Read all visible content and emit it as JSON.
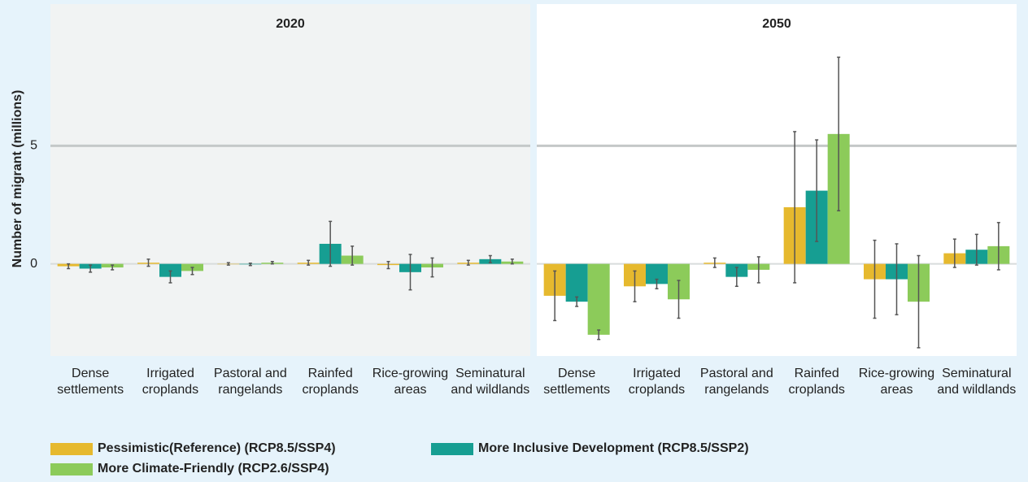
{
  "chart_data": {
    "type": "bar",
    "ylabel": "Number of migrant (millions)",
    "categories": [
      "Dense settlements",
      "Irrigated croplands",
      "Pastoral and rangelands",
      "Rainfed croplands",
      "Rice-growing areas",
      "Seminatural and wildlands"
    ],
    "ylim": [
      -3.9,
      11
    ],
    "yticks": [
      0,
      5
    ],
    "grid": true,
    "series": [
      {
        "name": "Pessimistic(Reference) (RCP8.5/SSP4)",
        "color": "#e6b92e"
      },
      {
        "name": "More Inclusive Development (RCP8.5/SSP2)",
        "color": "#169e92"
      },
      {
        "name": "More Climate-Friendly (RCP2.6/SSP4)",
        "color": "#8ccb5a"
      }
    ],
    "panels": [
      {
        "title": "2020",
        "values": [
          [
            -0.1,
            0.05,
            0,
            0.05,
            -0.05,
            0.05
          ],
          [
            -0.2,
            -0.55,
            -0.02,
            0.85,
            -0.35,
            0.2
          ],
          [
            -0.15,
            -0.3,
            0.05,
            0.35,
            -0.15,
            0.1
          ]
        ],
        "errors": [
          [
            0.1,
            0.15,
            0.05,
            0.1,
            0.15,
            0.1
          ],
          [
            0.15,
            0.25,
            0.05,
            0.95,
            0.75,
            0.15
          ],
          [
            0.1,
            0.15,
            0.05,
            0.4,
            0.4,
            0.1
          ]
        ]
      },
      {
        "title": "2050",
        "values": [
          [
            -1.35,
            -0.95,
            0.05,
            2.4,
            -0.65,
            0.45
          ],
          [
            -1.6,
            -0.85,
            -0.55,
            3.1,
            -0.65,
            0.6
          ],
          [
            -3.0,
            -1.5,
            -0.25,
            5.5,
            -1.6,
            0.75
          ]
        ],
        "errors": [
          [
            1.05,
            0.65,
            0.2,
            3.2,
            1.65,
            0.6
          ],
          [
            0.2,
            0.2,
            0.4,
            2.15,
            1.5,
            0.65
          ],
          [
            0.2,
            0.8,
            0.55,
            3.25,
            1.95,
            1.0
          ]
        ]
      }
    ]
  }
}
